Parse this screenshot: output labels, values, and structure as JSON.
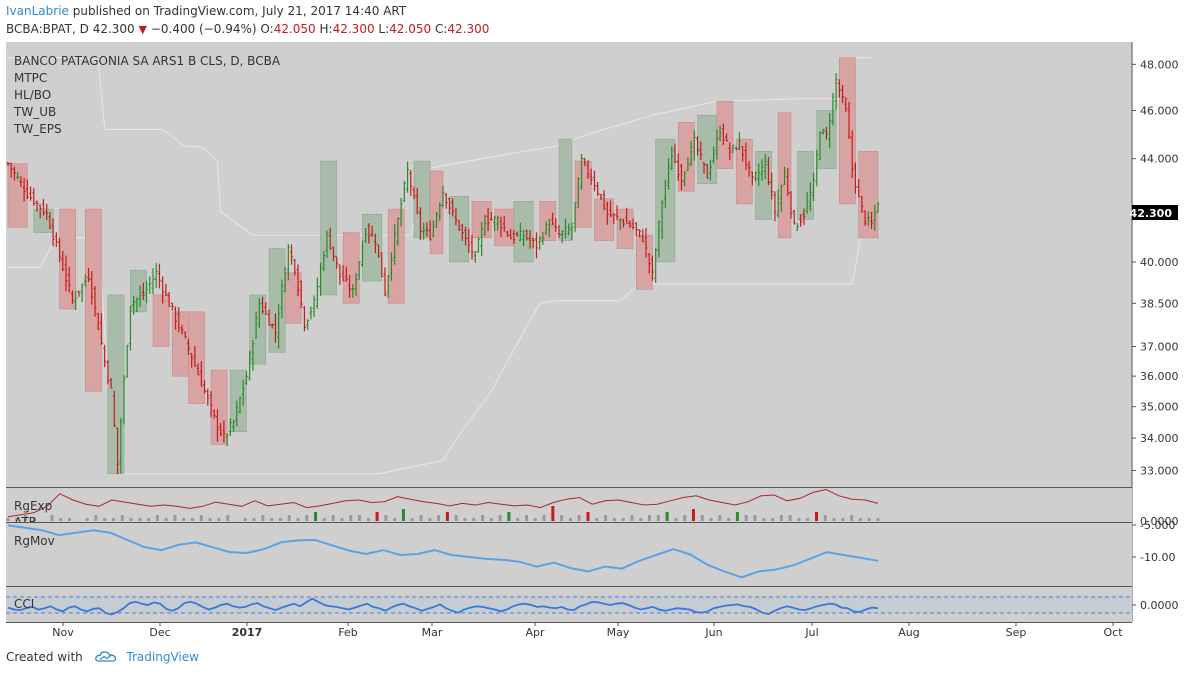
{
  "header": {
    "author": "IvanLabrie",
    "published_text": "published on TradingView.com, July 21, 2017 14:40 ART",
    "symbol_line": "BCBA:BPAT, D",
    "last": "42.300",
    "change_arrow": "▼",
    "change": "−0.400 (−0.94%)",
    "o_label": "O:",
    "o_value": "42.050",
    "h_label": "H:",
    "h_value": "42.300",
    "l_label": "L:",
    "l_value": "42.050",
    "c_label": "C:",
    "c_value": "42.300"
  },
  "legend": {
    "title": "BANCO PATAGONIA SA ARS1 B CLS, D, BCBA",
    "studies": [
      "MTPC",
      "HL/BO",
      "TW_UB",
      "TW_EPS"
    ]
  },
  "price_badge": "42.300",
  "panes": {
    "rgexp_label": "RgExp",
    "atr_label": "ATR",
    "rgmov_label": "RgMov",
    "cci_label": "CCI"
  },
  "footer": {
    "created_with": "Created with",
    "brand": "TradingView"
  },
  "colors": {
    "background": "#ffffff",
    "pane_bg": "#cfcfcf",
    "up": "#2a8a2a",
    "down": "#c41b1b",
    "up_box": "#a9bba9",
    "down_box": "#d7a3a3",
    "band": "#e6e6e6",
    "rgmov": "#5aa2e6",
    "rgexp": "#a52a2a",
    "accent": "#2f8ad6"
  },
  "chart_data": {
    "type": "candlestick",
    "x_ticks": [
      "Nov",
      "Dec",
      "2017",
      "Feb",
      "Mar",
      "Apr",
      "May",
      "Jun",
      "Jul",
      "Aug",
      "Sep",
      "Oct"
    ],
    "y_ticks": [
      "48.000",
      "46.000",
      "44.000",
      "42.000",
      "40.000",
      "38.500",
      "37.000",
      "36.000",
      "35.000",
      "34.000",
      "33.000"
    ],
    "y_scale": "log",
    "ylim": [
      32.5,
      49.0
    ],
    "last_price": 42.3,
    "close_path": [
      [
        0,
        43.8
      ],
      [
        6,
        42.6
      ],
      [
        12,
        41.8
      ],
      [
        20,
        38.6
      ],
      [
        25,
        39.5
      ],
      [
        30,
        36.5
      ],
      [
        32,
        35.5
      ],
      [
        34,
        33.2
      ],
      [
        38,
        38.5
      ],
      [
        42,
        38.8
      ],
      [
        46,
        39.6
      ],
      [
        50,
        38.5
      ],
      [
        55,
        37.2
      ],
      [
        60,
        35.8
      ],
      [
        64,
        34.6
      ],
      [
        67,
        34.0
      ],
      [
        70,
        34.5
      ],
      [
        74,
        36.0
      ],
      [
        78,
        38.5
      ],
      [
        83,
        37.5
      ],
      [
        87,
        40.5
      ],
      [
        89,
        39.8
      ],
      [
        92,
        37.8
      ],
      [
        95,
        38.5
      ],
      [
        99,
        41.0
      ],
      [
        103,
        39.5
      ],
      [
        107,
        38.9
      ],
      [
        111,
        41.2
      ],
      [
        114,
        40.8
      ],
      [
        117,
        38.9
      ],
      [
        120,
        40.9
      ],
      [
        124,
        43.5
      ],
      [
        128,
        41.2
      ],
      [
        131,
        41.0
      ],
      [
        135,
        42.7
      ],
      [
        138,
        41.8
      ],
      [
        142,
        40.8
      ],
      [
        145,
        40.2
      ],
      [
        148,
        41.6
      ],
      [
        152,
        41.6
      ],
      [
        156,
        40.9
      ],
      [
        160,
        41.0
      ],
      [
        164,
        40.6
      ],
      [
        168,
        41.5
      ],
      [
        171,
        41.0
      ],
      [
        175,
        41.3
      ],
      [
        178,
        43.9
      ],
      [
        182,
        43.0
      ],
      [
        186,
        41.8
      ],
      [
        190,
        41.6
      ],
      [
        194,
        41.3
      ],
      [
        197,
        40.9
      ],
      [
        200,
        39.5
      ],
      [
        203,
        42.3
      ],
      [
        206,
        44.2
      ],
      [
        209,
        43.2
      ],
      [
        213,
        44.7
      ],
      [
        217,
        43.3
      ],
      [
        221,
        45.2
      ],
      [
        224,
        44.3
      ],
      [
        227,
        44.6
      ],
      [
        231,
        43.1
      ],
      [
        235,
        43.8
      ],
      [
        238,
        41.9
      ],
      [
        241,
        43.4
      ],
      [
        244,
        41.3
      ],
      [
        247,
        41.8
      ],
      [
        250,
        43.0
      ],
      [
        252,
        45.2
      ],
      [
        254,
        44.9
      ],
      [
        257,
        47.3
      ],
      [
        260,
        46.0
      ],
      [
        262,
        43.6
      ],
      [
        264,
        42.4
      ],
      [
        266,
        41.6
      ],
      [
        268,
        41.4
      ],
      [
        270,
        42.3
      ]
    ],
    "mtpc_boxes": [
      {
        "x0": 0,
        "x1": 6,
        "low": 41.3,
        "high": 43.8,
        "dir": "down"
      },
      {
        "x0": 8,
        "x1": 14,
        "low": 41.1,
        "high": 42.0,
        "dir": "up"
      },
      {
        "x0": 16,
        "x1": 21,
        "low": 38.3,
        "high": 42.0,
        "dir": "down"
      },
      {
        "x0": 24,
        "x1": 29,
        "low": 35.5,
        "high": 42.0,
        "dir": "down"
      },
      {
        "x0": 31,
        "x1": 36,
        "low": 32.9,
        "high": 38.8,
        "dir": "up"
      },
      {
        "x0": 38,
        "x1": 43,
        "low": 38.2,
        "high": 39.7,
        "dir": "up"
      },
      {
        "x0": 45,
        "x1": 50,
        "low": 37.0,
        "high": 38.8,
        "dir": "down"
      },
      {
        "x0": 51,
        "x1": 57,
        "low": 36.0,
        "high": 38.2,
        "dir": "down"
      },
      {
        "x0": 56,
        "x1": 61,
        "low": 35.1,
        "high": 38.2,
        "dir": "down"
      },
      {
        "x0": 63,
        "x1": 68,
        "low": 33.8,
        "high": 36.2,
        "dir": "down"
      },
      {
        "x0": 69,
        "x1": 74,
        "low": 34.2,
        "high": 36.2,
        "dir": "up"
      },
      {
        "x0": 75,
        "x1": 80,
        "low": 36.4,
        "high": 38.8,
        "dir": "up"
      },
      {
        "x0": 81,
        "x1": 86,
        "low": 36.8,
        "high": 40.5,
        "dir": "up"
      },
      {
        "x0": 86,
        "x1": 91,
        "low": 37.8,
        "high": 39.6,
        "dir": "down"
      },
      {
        "x0": 97,
        "x1": 102,
        "low": 38.8,
        "high": 43.9,
        "dir": "up"
      },
      {
        "x0": 104,
        "x1": 109,
        "low": 38.5,
        "high": 41.1,
        "dir": "down"
      },
      {
        "x0": 110,
        "x1": 116,
        "low": 39.3,
        "high": 41.8,
        "dir": "up"
      },
      {
        "x0": 118,
        "x1": 123,
        "low": 38.5,
        "high": 42.0,
        "dir": "down"
      },
      {
        "x0": 126,
        "x1": 131,
        "low": 40.9,
        "high": 43.9,
        "dir": "up"
      },
      {
        "x0": 131,
        "x1": 135,
        "low": 40.3,
        "high": 43.5,
        "dir": "down"
      },
      {
        "x0": 137,
        "x1": 143,
        "low": 40.0,
        "high": 42.5,
        "dir": "up"
      },
      {
        "x0": 144,
        "x1": 150,
        "low": 40.9,
        "high": 42.3,
        "dir": "down"
      },
      {
        "x0": 151,
        "x1": 157,
        "low": 40.6,
        "high": 42.0,
        "dir": "down"
      },
      {
        "x0": 157,
        "x1": 163,
        "low": 40.0,
        "high": 42.3,
        "dir": "up"
      },
      {
        "x0": 165,
        "x1": 170,
        "low": 40.8,
        "high": 42.3,
        "dir": "down"
      },
      {
        "x0": 171,
        "x1": 175,
        "low": 40.8,
        "high": 44.8,
        "dir": "up"
      },
      {
        "x0": 176,
        "x1": 181,
        "low": 41.3,
        "high": 43.9,
        "dir": "down"
      },
      {
        "x0": 182,
        "x1": 188,
        "low": 40.8,
        "high": 42.4,
        "dir": "down"
      },
      {
        "x0": 189,
        "x1": 194,
        "low": 40.5,
        "high": 42.0,
        "dir": "down"
      },
      {
        "x0": 195,
        "x1": 200,
        "low": 39.0,
        "high": 41.0,
        "dir": "down"
      },
      {
        "x0": 201,
        "x1": 207,
        "low": 40.0,
        "high": 44.8,
        "dir": "up"
      },
      {
        "x0": 208,
        "x1": 213,
        "low": 42.7,
        "high": 45.5,
        "dir": "down"
      },
      {
        "x0": 214,
        "x1": 220,
        "low": 43.0,
        "high": 45.8,
        "dir": "up"
      },
      {
        "x0": 220,
        "x1": 225,
        "low": 43.6,
        "high": 46.4,
        "dir": "down"
      },
      {
        "x0": 226,
        "x1": 231,
        "low": 42.2,
        "high": 44.8,
        "dir": "down"
      },
      {
        "x0": 232,
        "x1": 237,
        "low": 41.6,
        "high": 44.3,
        "dir": "up"
      },
      {
        "x0": 239,
        "x1": 243,
        "low": 40.9,
        "high": 45.9,
        "dir": "down"
      },
      {
        "x0": 245,
        "x1": 250,
        "low": 41.6,
        "high": 44.3,
        "dir": "up"
      },
      {
        "x0": 251,
        "x1": 257,
        "low": 43.6,
        "high": 46.0,
        "dir": "up"
      },
      {
        "x0": 258,
        "x1": 263,
        "low": 42.2,
        "high": 48.3,
        "dir": "down"
      },
      {
        "x0": 264,
        "x1": 270,
        "low": 40.9,
        "high": 44.3,
        "dir": "down"
      }
    ],
    "tw_ub_path": [
      [
        0,
        48.3
      ],
      [
        20,
        48.3
      ],
      [
        20,
        48.3
      ],
      [
        28,
        48.2
      ],
      [
        30,
        45.2
      ],
      [
        40,
        45.2
      ],
      [
        48,
        45.2
      ],
      [
        55,
        44.5
      ],
      [
        60,
        44.5
      ],
      [
        65,
        43.9
      ],
      [
        66,
        41.9
      ],
      [
        76,
        41.0
      ],
      [
        125,
        41.0
      ],
      [
        125,
        41.0
      ],
      [
        130,
        43.6
      ],
      [
        160,
        44.3
      ],
      [
        170,
        44.5
      ],
      [
        180,
        45.0
      ],
      [
        200,
        45.8
      ],
      [
        220,
        46.4
      ],
      [
        246,
        46.5
      ],
      [
        258,
        46.5
      ],
      [
        260,
        48.3
      ],
      [
        268,
        48.3
      ]
    ],
    "tw_eps_path": [
      [
        0,
        39.8
      ],
      [
        10,
        39.8
      ],
      [
        15,
        40.9
      ],
      [
        28,
        40.9
      ],
      [
        33,
        32.9
      ],
      [
        105,
        32.9
      ],
      [
        115,
        32.9
      ],
      [
        135,
        33.3
      ],
      [
        140,
        34.1
      ],
      [
        150,
        35.5
      ],
      [
        160,
        37.5
      ],
      [
        165,
        38.5
      ],
      [
        170,
        38.6
      ],
      [
        190,
        38.6
      ],
      [
        192,
        38.8
      ],
      [
        196,
        39.2
      ],
      [
        240,
        39.2
      ],
      [
        262,
        39.2
      ],
      [
        264,
        40.5
      ],
      [
        266,
        42.0
      ]
    ],
    "rgmov_values": [
      -3.5,
      -4.0,
      -4.5,
      -5.5,
      -5.0,
      -4.5,
      -5.0,
      -6.5,
      -8.0,
      -8.6,
      -7.5,
      -7.0,
      -8.0,
      -9.0,
      -9.2,
      -8.4,
      -7.0,
      -6.6,
      -6.5,
      -7.6,
      -8.7,
      -9.4,
      -8.6,
      -9.6,
      -9.4,
      -8.6,
      -9.6,
      -10.0,
      -10.4,
      -10.6,
      -11.0,
      -12.0,
      -11.2,
      -12.3,
      -13.0,
      -12.0,
      -12.4,
      -10.8,
      -9.6,
      -8.4,
      -9.5,
      -11.6,
      -13.0,
      -14.2,
      -13.0,
      -12.6,
      -11.8,
      -10.4,
      -9.0,
      -9.6,
      -10.2,
      -10.8
    ],
    "rgmov_ylim": [
      -16.0,
      -3.0
    ],
    "rgmov_ticks": [
      "-5.000",
      "-10.00"
    ],
    "rgexp_volume": [
      1,
      1,
      2,
      1,
      0,
      2,
      1,
      1,
      0,
      1,
      2,
      1,
      1,
      2,
      1,
      1,
      1,
      2,
      1,
      2,
      1,
      1,
      2,
      1,
      1,
      2,
      0,
      1,
      1,
      2,
      1,
      1,
      2,
      1,
      2,
      3,
      1,
      2,
      1,
      2,
      2,
      1,
      3,
      2,
      1,
      4,
      1,
      2,
      1,
      2,
      3,
      2,
      1,
      1,
      2,
      1,
      2,
      3,
      1,
      2,
      1,
      2,
      5,
      2,
      1,
      2,
      3,
      1,
      2,
      1,
      1,
      2,
      1,
      2,
      2,
      3,
      1,
      2,
      4,
      2,
      1,
      2,
      1,
      3,
      2,
      2,
      1,
      1,
      2,
      2,
      1,
      1,
      3,
      2,
      1,
      1,
      2,
      1,
      1,
      1
    ],
    "rgexp_line": [
      1.0,
      1.5,
      2.0,
      3.5,
      6.5,
      5.0,
      4.0,
      3.5,
      5.0,
      4.5,
      4.0,
      3.5,
      3.8,
      3.5,
      3.0,
      3.5,
      4.5,
      4.0,
      3.5,
      4.8,
      3.6,
      4.0,
      4.4,
      3.2,
      3.6,
      4.2,
      4.8,
      5.0,
      4.4,
      4.6,
      5.8,
      5.2,
      4.6,
      4.2,
      3.6,
      4.2,
      3.8,
      4.4,
      4.0,
      3.6,
      3.8,
      3.2,
      4.4,
      5.2,
      5.6,
      4.0,
      4.8,
      5.0,
      4.4,
      3.8,
      4.0,
      4.8,
      5.6,
      6.0,
      5.0,
      4.4,
      3.8,
      4.6,
      6.0,
      6.2,
      4.8,
      5.4,
      6.8,
      7.5,
      6.0,
      5.2,
      5.0,
      4.2
    ],
    "rgexp_ticks": [
      "0.0000"
    ],
    "cci_values": [
      -8,
      -14,
      -16,
      -10,
      -6,
      -14,
      -10,
      -4,
      -14,
      -20,
      -8,
      -4,
      -14,
      -20,
      -12,
      -10,
      -24,
      -30,
      -22,
      -10,
      6,
      10,
      4,
      0,
      8,
      4,
      -12,
      -18,
      -10,
      6,
      10,
      4,
      -6,
      -14,
      -8,
      0,
      4,
      -4,
      -8,
      -6,
      2,
      6,
      -4,
      -10,
      -16,
      -8,
      -2,
      4,
      -4,
      8,
      20,
      10,
      0,
      -4,
      -6,
      -10,
      -14,
      -8,
      -2,
      4,
      -6,
      -10,
      -18,
      -8,
      0,
      4,
      -4,
      -10,
      -18,
      -12,
      -6,
      2,
      -10,
      -18,
      -24,
      -14,
      -8,
      -4,
      -6,
      -10,
      -14,
      -20,
      -14,
      -4,
      2,
      4,
      0,
      -6,
      -4,
      -8,
      -10,
      -6,
      -14,
      -16,
      -4,
      2,
      10,
      8,
      4,
      0,
      4,
      6,
      0,
      -8,
      -14,
      -10,
      -6,
      -14,
      -18,
      -14,
      -10,
      -12,
      -14,
      -22,
      -24,
      -20,
      -10,
      -6,
      -2,
      0,
      2,
      -4,
      -6,
      -14,
      -24,
      -28,
      -18,
      -10,
      -4,
      -8,
      -14,
      -16,
      -10,
      -4,
      0,
      4,
      2,
      -8,
      -10,
      -20,
      -22,
      -14,
      -8,
      -10
    ],
    "cci_band": [
      100,
      -100
    ],
    "cci_ticks": [
      "0.0000"
    ]
  }
}
